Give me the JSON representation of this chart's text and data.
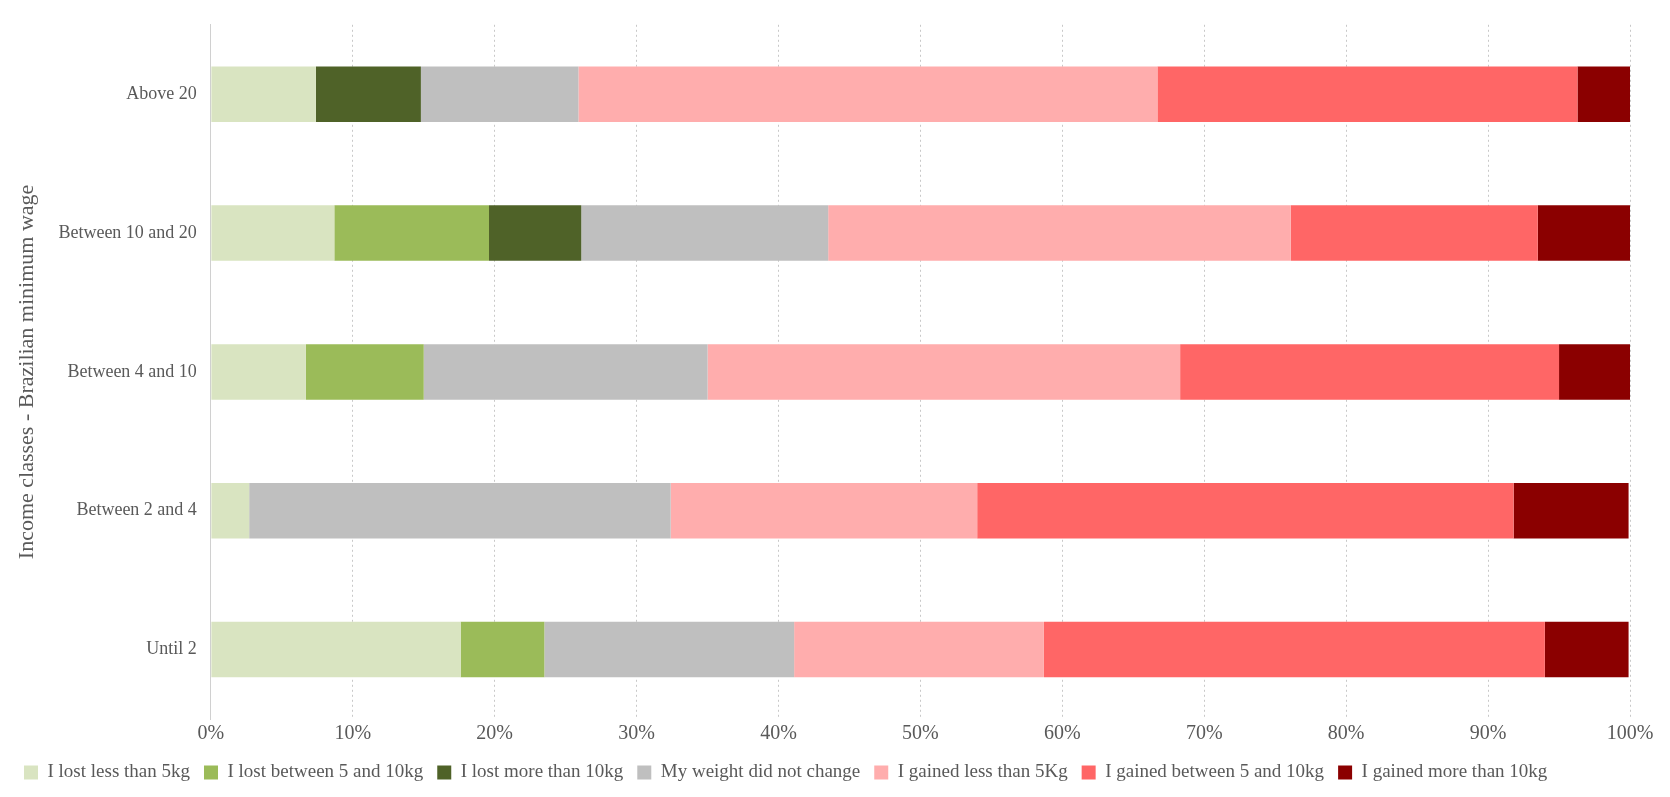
{
  "chart_data": {
    "type": "bar",
    "orientation": "horizontal",
    "stacked": true,
    "ylabel": "Income classes - Brazilian minimum wage",
    "categories": [
      "Above 20",
      "Between 10 and 20",
      "Between 4 and 10",
      "Between 2 and 4",
      "Until 2"
    ],
    "series": [
      {
        "name": "I lost less than 5kg",
        "color": "#d9e4c1",
        "values": [
          7.4,
          8.7,
          6.7,
          2.7,
          17.6
        ]
      },
      {
        "name": "I lost between 5 and 10kg",
        "color": "#9bbb59",
        "values": [
          0,
          10.9,
          8.3,
          0,
          5.9
        ]
      },
      {
        "name": "I lost more than 10kg",
        "color": "#4f6228",
        "values": [
          7.4,
          6.5,
          0,
          0,
          0
        ]
      },
      {
        "name": "My weight did not change",
        "color": "#bfbfbf",
        "values": [
          11.1,
          17.4,
          20.0,
          29.7,
          17.6
        ]
      },
      {
        "name": "I gained less than 5Kg",
        "color": "#ffadad",
        "values": [
          40.8,
          32.6,
          33.3,
          21.6,
          17.6
        ]
      },
      {
        "name": "I gained between 5 and 10kg",
        "color": "#ff6666",
        "values": [
          29.6,
          17.4,
          26.7,
          37.8,
          35.3
        ]
      },
      {
        "name": "I gained more than 10kg",
        "color": "#8b0000",
        "values": [
          3.7,
          6.5,
          5.0,
          8.1,
          5.9
        ]
      }
    ],
    "xlim": [
      0,
      100
    ],
    "xticks": [
      {
        "value": 0,
        "label": "0%"
      },
      {
        "value": 10,
        "label": "10%"
      },
      {
        "value": 20,
        "label": "20%"
      },
      {
        "value": 30,
        "label": "30%"
      },
      {
        "value": 40,
        "label": "40%"
      },
      {
        "value": 50,
        "label": "50%"
      },
      {
        "value": 60,
        "label": "60%"
      },
      {
        "value": 70,
        "label": "70%"
      },
      {
        "value": 80,
        "label": "80%"
      },
      {
        "value": 90,
        "label": "90%"
      },
      {
        "value": 100,
        "label": "100%"
      }
    ],
    "grid": "x",
    "legend": "bottom"
  }
}
